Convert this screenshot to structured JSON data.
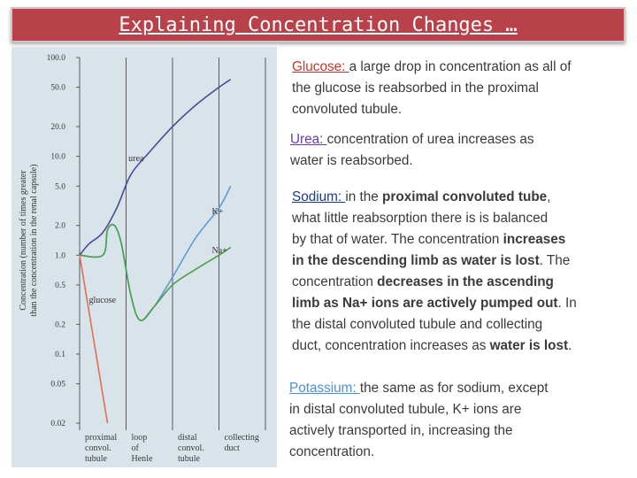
{
  "title": "Explaining Concentration Changes …",
  "colors": {
    "title_bg": "#b9424a",
    "glucose": "#c0392b",
    "urea": "#6a3aa8",
    "sodium": "#1a3b8c",
    "potassium": "#4a90d9",
    "chart_bg": "#d9e3ea",
    "curve_urea": "#4a4a9a",
    "curve_k": "#5b9bd5",
    "curve_na": "#4aa04a",
    "curve_glucose": "#e07050"
  },
  "chart_data": {
    "type": "line",
    "ylabel": "Concentration (number of times greater than the concentration in the renal capsule)",
    "y_scale": "log",
    "ylim": [
      0.02,
      100
    ],
    "y_ticks": [
      "100.0",
      "50.0",
      "20.0",
      "10.0",
      "5.0",
      "2.0",
      "1.0",
      "0.5",
      "0.2",
      "0.1",
      "0.05",
      "0.02"
    ],
    "categories": [
      [
        "proximal",
        "convol.",
        "tubule"
      ],
      [
        "loop",
        "of",
        "Henle"
      ],
      [
        "distal",
        "convol.",
        "tubule"
      ],
      [
        "collecting",
        "duct"
      ]
    ],
    "series": [
      {
        "name": "urea",
        "points": [
          [
            0,
            1.0
          ],
          [
            0.2,
            1.3
          ],
          [
            0.5,
            1.7
          ],
          [
            0.8,
            3.0
          ],
          [
            1.1,
            6.5
          ],
          [
            1.5,
            11
          ],
          [
            2.0,
            20
          ],
          [
            2.5,
            33
          ],
          [
            3.0,
            50
          ],
          [
            3.25,
            60
          ]
        ]
      },
      {
        "name": "K+",
        "points": [
          [
            0,
            1.0
          ],
          [
            0.5,
            1.0
          ],
          [
            0.6,
            1.8
          ],
          [
            0.75,
            2.0
          ],
          [
            0.9,
            1.3
          ],
          [
            1.1,
            0.4
          ],
          [
            1.3,
            0.22
          ],
          [
            1.6,
            0.3
          ],
          [
            2.0,
            0.6
          ],
          [
            2.5,
            1.5
          ],
          [
            3.0,
            3.0
          ],
          [
            3.25,
            5.0
          ]
        ]
      },
      {
        "name": "Na+",
        "points": [
          [
            0,
            1.0
          ],
          [
            0.5,
            1.0
          ],
          [
            0.6,
            1.8
          ],
          [
            0.75,
            2.0
          ],
          [
            0.9,
            1.3
          ],
          [
            1.1,
            0.4
          ],
          [
            1.3,
            0.22
          ],
          [
            1.6,
            0.3
          ],
          [
            2.0,
            0.5
          ],
          [
            2.5,
            0.72
          ],
          [
            3.0,
            1.0
          ],
          [
            3.25,
            1.2
          ]
        ]
      },
      {
        "name": "glucose",
        "points": [
          [
            0,
            1.0
          ],
          [
            0.6,
            0.02
          ]
        ]
      }
    ]
  },
  "blocks": {
    "glucose": {
      "head": "Glucose: ",
      "lines": [
        "a large drop in concentration as all of",
        "the glucose is reabsorbed in the proximal",
        "convoluted tubule."
      ]
    },
    "urea": {
      "head": "Urea: ",
      "lines": [
        "concentration of urea increases as",
        "water is reabsorbed."
      ]
    },
    "sodium": {
      "head": "Sodium: ",
      "l1a": "in the ",
      "l1b": "proximal convoluted tube",
      "l1c": ",",
      "l2": "what little reabsorption there is is balanced",
      "l3a": "by that of water. The concentration ",
      "l3b": "increases",
      "l4a": "in the descending limb as water is lost",
      "l4b": ". The",
      "l5a": "concentration ",
      "l5b": "decreases in the ascending",
      "l6a": "limb as Na+ ions are actively pumped out",
      "l6b": ". In",
      "l7": "the distal convoluted tubule and collecting",
      "l8a": "duct, concentration increases as ",
      "l8b": "water is lost",
      "l8c": "."
    },
    "potassium": {
      "head": "Potassium: ",
      "lines": [
        "the same as for sodium, except",
        "in distal convoluted tubule, K+ ions are",
        "actively transported in, increasing the",
        "concentration."
      ]
    }
  }
}
